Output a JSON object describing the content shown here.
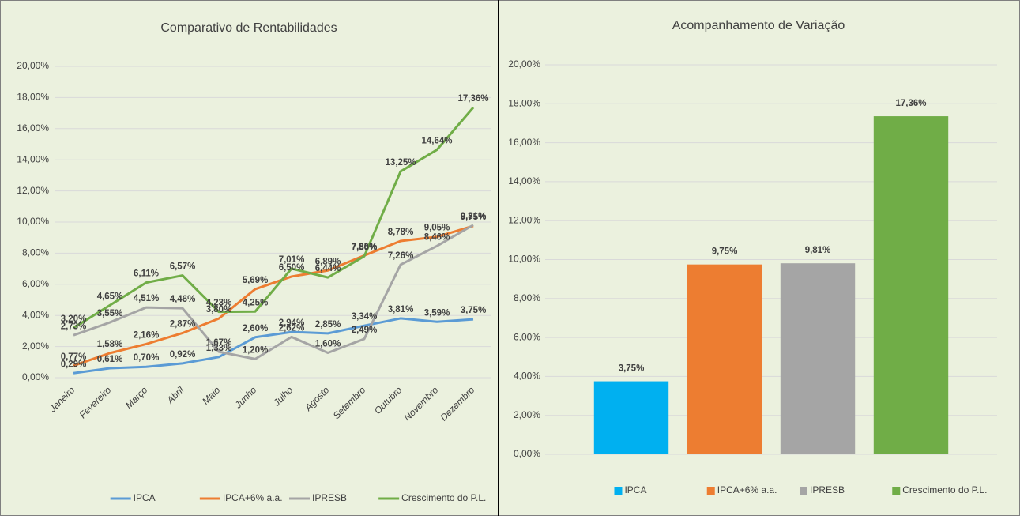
{
  "chart_data": [
    {
      "type": "line",
      "title": "Comparativo de Rentabilidades",
      "categories": [
        "Janeiro",
        "Fevereiro",
        "Março",
        "Abril",
        "Maio",
        "Junho",
        "Julho",
        "Agosto",
        "Setembro",
        "Outubro",
        "Novembro",
        "Dezembro"
      ],
      "series": [
        {
          "name": "IPCA",
          "color": "#5b9bd5",
          "values": [
            0.29,
            0.61,
            0.7,
            0.92,
            1.33,
            2.6,
            2.94,
            2.85,
            3.34,
            3.81,
            3.59,
            3.75
          ],
          "value_labels": [
            "0,29%",
            "0,61%",
            "0,70%",
            "0,92%",
            "1,33%",
            "2,60%",
            "2,94%",
            "2,85%",
            "3,34%",
            "3,81%",
            "3,59%",
            "3,75%"
          ]
        },
        {
          "name": "IPCA+6% a.a.",
          "color": "#ed7d31",
          "values": [
            0.77,
            1.58,
            2.16,
            2.87,
            3.8,
            5.69,
            6.5,
            6.89,
            7.85,
            8.78,
            9.05,
            9.75
          ],
          "value_labels": [
            "0,77%",
            "1,58%",
            "2,16%",
            "2,87%",
            "3,80%",
            "5,69%",
            "6,50%",
            "6,89%",
            "7,85%",
            "8,78%",
            "9,05%",
            "9,75%"
          ]
        },
        {
          "name": "IPRESB",
          "color": "#a5a5a5",
          "values": [
            2.73,
            3.55,
            4.51,
            4.46,
            1.67,
            1.2,
            2.62,
            1.6,
            2.49,
            7.26,
            8.46,
            9.81
          ],
          "value_labels": [
            "2,73%",
            "3,55%",
            "4,51%",
            "4,46%",
            "1,67%",
            "1,20%",
            "2,62%",
            "1,60%",
            "2,49%",
            "7,26%",
            "8,46%",
            "9,81%"
          ]
        },
        {
          "name": "Crescimento do P.L.",
          "color": "#70ad47",
          "values": [
            3.2,
            4.65,
            6.11,
            6.57,
            4.23,
            4.25,
            7.01,
            6.44,
            7.8,
            13.25,
            14.64,
            17.36
          ],
          "value_labels": [
            "3,20%",
            "4,65%",
            "6,11%",
            "6,57%",
            "4,23%",
            "4,25%",
            "7,01%",
            "6,44%",
            "7,80%",
            "13,25%",
            "14,64%",
            "17,36%"
          ]
        }
      ],
      "ylim": [
        0,
        20
      ],
      "yticks": [
        {
          "value": 0,
          "label": "0,00%"
        },
        {
          "value": 2,
          "label": "2,00%"
        },
        {
          "value": 4,
          "label": "4,00%"
        },
        {
          "value": 6,
          "label": "6,00%"
        },
        {
          "value": 8,
          "label": "8,00%"
        },
        {
          "value": 10,
          "label": "10,00%"
        },
        {
          "value": 12,
          "label": "12,00%"
        },
        {
          "value": 14,
          "label": "14,00%"
        },
        {
          "value": 16,
          "label": "16,00%"
        },
        {
          "value": 18,
          "label": "18,00%"
        },
        {
          "value": 20,
          "label": "20,00%"
        }
      ],
      "grid": true,
      "legend": "bottom"
    },
    {
      "type": "bar",
      "title": "Acompanhamento de Variação",
      "series": [
        {
          "name": "IPCA",
          "color": "#00b0f0",
          "values": [
            3.75
          ],
          "value_labels": [
            "3,75%"
          ]
        },
        {
          "name": "IPCA+6% a.a.",
          "color": "#ed7d31",
          "values": [
            9.75
          ],
          "value_labels": [
            "9,75%"
          ]
        },
        {
          "name": "IPRESB",
          "color": "#a5a5a5",
          "values": [
            9.81
          ],
          "value_labels": [
            "9,81%"
          ]
        },
        {
          "name": "Crescimento do P.L.",
          "color": "#70ad47",
          "values": [
            17.36
          ],
          "value_labels": [
            "17,36%"
          ]
        }
      ],
      "ylim": [
        0,
        20
      ],
      "yticks": [
        {
          "value": 0,
          "label": "0,00%"
        },
        {
          "value": 2,
          "label": "2,00%"
        },
        {
          "value": 4,
          "label": "4,00%"
        },
        {
          "value": 6,
          "label": "6,00%"
        },
        {
          "value": 8,
          "label": "8,00%"
        },
        {
          "value": 10,
          "label": "10,00%"
        },
        {
          "value": 12,
          "label": "12,00%"
        },
        {
          "value": 14,
          "label": "14,00%"
        },
        {
          "value": 16,
          "label": "16,00%"
        },
        {
          "value": 18,
          "label": "18,00%"
        },
        {
          "value": 20,
          "label": "20,00%"
        }
      ],
      "grid": true,
      "legend": "bottom"
    }
  ]
}
